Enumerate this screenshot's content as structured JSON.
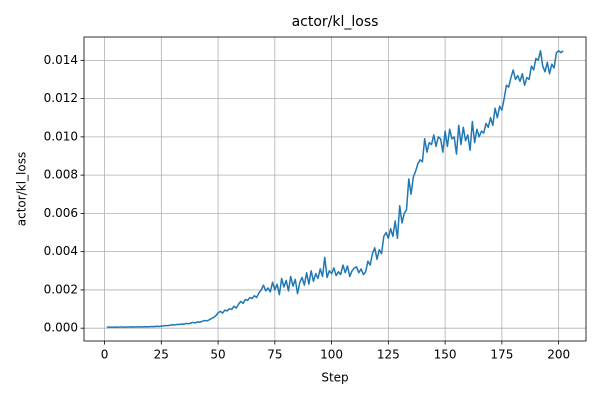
{
  "chart_data": {
    "type": "line",
    "title": "actor/kl_loss",
    "xlabel": "Step",
    "ylabel": "actor/kl_loss",
    "x": [
      1,
      2,
      3,
      4,
      5,
      6,
      7,
      8,
      9,
      10,
      11,
      12,
      13,
      14,
      15,
      16,
      17,
      18,
      19,
      20,
      21,
      22,
      23,
      24,
      25,
      26,
      27,
      28,
      29,
      30,
      31,
      32,
      33,
      34,
      35,
      36,
      37,
      38,
      39,
      40,
      41,
      42,
      43,
      44,
      45,
      46,
      47,
      48,
      49,
      50,
      51,
      52,
      53,
      54,
      55,
      56,
      57,
      58,
      59,
      60,
      61,
      62,
      63,
      64,
      65,
      66,
      67,
      68,
      69,
      70,
      71,
      72,
      73,
      74,
      75,
      76,
      77,
      78,
      79,
      80,
      81,
      82,
      83,
      84,
      85,
      86,
      87,
      88,
      89,
      90,
      91,
      92,
      93,
      94,
      95,
      96,
      97,
      98,
      99,
      100,
      101,
      102,
      103,
      104,
      105,
      106,
      107,
      108,
      109,
      110,
      111,
      112,
      113,
      114,
      115,
      116,
      117,
      118,
      119,
      120,
      121,
      122,
      123,
      124,
      125,
      126,
      127,
      128,
      129,
      130,
      131,
      132,
      133,
      134,
      135,
      136,
      137,
      138,
      139,
      140,
      141,
      142,
      143,
      144,
      145,
      146,
      147,
      148,
      149,
      150,
      151,
      152,
      153,
      154,
      155,
      156,
      157,
      158,
      159,
      160,
      161,
      162,
      163,
      164,
      165,
      166,
      167,
      168,
      169,
      170,
      171,
      172,
      173,
      174,
      175,
      176,
      177,
      178,
      179,
      180,
      181,
      182,
      183,
      184,
      185,
      186,
      187,
      188,
      189,
      190,
      191,
      192,
      193,
      194,
      195,
      196,
      197,
      198,
      199,
      200,
      201,
      202
    ],
    "series": [
      {
        "name": "actor/kl_loss",
        "color": "#1f77b4",
        "values": [
          5e-05,
          6e-05,
          5e-05,
          5e-05,
          6e-05,
          5e-05,
          6e-05,
          6e-05,
          5e-05,
          6e-05,
          6e-05,
          7e-05,
          6e-05,
          7e-05,
          7e-05,
          6e-05,
          7e-05,
          8e-05,
          7e-05,
          8e-05,
          9e-05,
          8e-05,
          0.0001,
          9e-05,
          0.00011,
          0.00012,
          0.00014,
          0.00013,
          0.00016,
          0.00018,
          0.00017,
          0.0002,
          0.00019,
          0.00022,
          0.00021,
          0.00025,
          0.00023,
          0.00027,
          0.0003,
          0.00028,
          0.00033,
          0.00031,
          0.00036,
          0.0004,
          0.00038,
          0.00043,
          0.0005,
          0.00056,
          0.00065,
          0.0008,
          0.00088,
          0.00079,
          0.00095,
          0.0009,
          0.00102,
          0.00098,
          0.00115,
          0.00105,
          0.00125,
          0.0014,
          0.0013,
          0.0015,
          0.00145,
          0.0016,
          0.00155,
          0.0017,
          0.0016,
          0.00185,
          0.002,
          0.00225,
          0.00195,
          0.0021,
          0.0019,
          0.0024,
          0.002,
          0.0023,
          0.00175,
          0.0026,
          0.00215,
          0.0025,
          0.00195,
          0.0027,
          0.0022,
          0.00255,
          0.0018,
          0.0024,
          0.00265,
          0.00225,
          0.0029,
          0.0023,
          0.003,
          0.00245,
          0.00285,
          0.0026,
          0.0031,
          0.0027,
          0.0037,
          0.00265,
          0.003,
          0.00285,
          0.00315,
          0.00275,
          0.00295,
          0.0028,
          0.0033,
          0.0029,
          0.00325,
          0.0027,
          0.003,
          0.00315,
          0.0032,
          0.0029,
          0.0031,
          0.0028,
          0.00295,
          0.0035,
          0.0033,
          0.0039,
          0.0042,
          0.0036,
          0.0041,
          0.0039,
          0.0048,
          0.005,
          0.0047,
          0.0052,
          0.0048,
          0.0056,
          0.0047,
          0.0064,
          0.0055,
          0.006,
          0.0062,
          0.0078,
          0.007,
          0.0079,
          0.0082,
          0.0086,
          0.0088,
          0.0087,
          0.0099,
          0.0092,
          0.0097,
          0.0096,
          0.0101,
          0.0095,
          0.01,
          0.0099,
          0.0092,
          0.0103,
          0.0095,
          0.0104,
          0.0099,
          0.01,
          0.0091,
          0.0106,
          0.0096,
          0.0105,
          0.0098,
          0.0101,
          0.0093,
          0.0108,
          0.0097,
          0.0104,
          0.01,
          0.0103,
          0.0102,
          0.0107,
          0.0105,
          0.011,
          0.0106,
          0.0115,
          0.011,
          0.0116,
          0.0114,
          0.012,
          0.0127,
          0.0126,
          0.0131,
          0.0135,
          0.013,
          0.0132,
          0.0129,
          0.0133,
          0.0127,
          0.0131,
          0.013,
          0.0137,
          0.0135,
          0.0141,
          0.014,
          0.0145,
          0.0137,
          0.0134,
          0.0139,
          0.0133,
          0.0138,
          0.0136,
          0.0144,
          0.0145,
          0.0144,
          0.0145
        ]
      }
    ],
    "xlim": [
      -9.05,
      212.05
    ],
    "xticks": [
      0,
      25,
      50,
      75,
      100,
      125,
      150,
      175,
      200
    ],
    "ylim": [
      -0.00067,
      0.01522
    ],
    "yticks": [
      {
        "value": 0,
        "label": "0.000"
      },
      0.002,
      0.004,
      0.006,
      0.008,
      {
        "value": 0.01,
        "label": "0.010"
      },
      0.012,
      0.014
    ],
    "grid": true
  }
}
